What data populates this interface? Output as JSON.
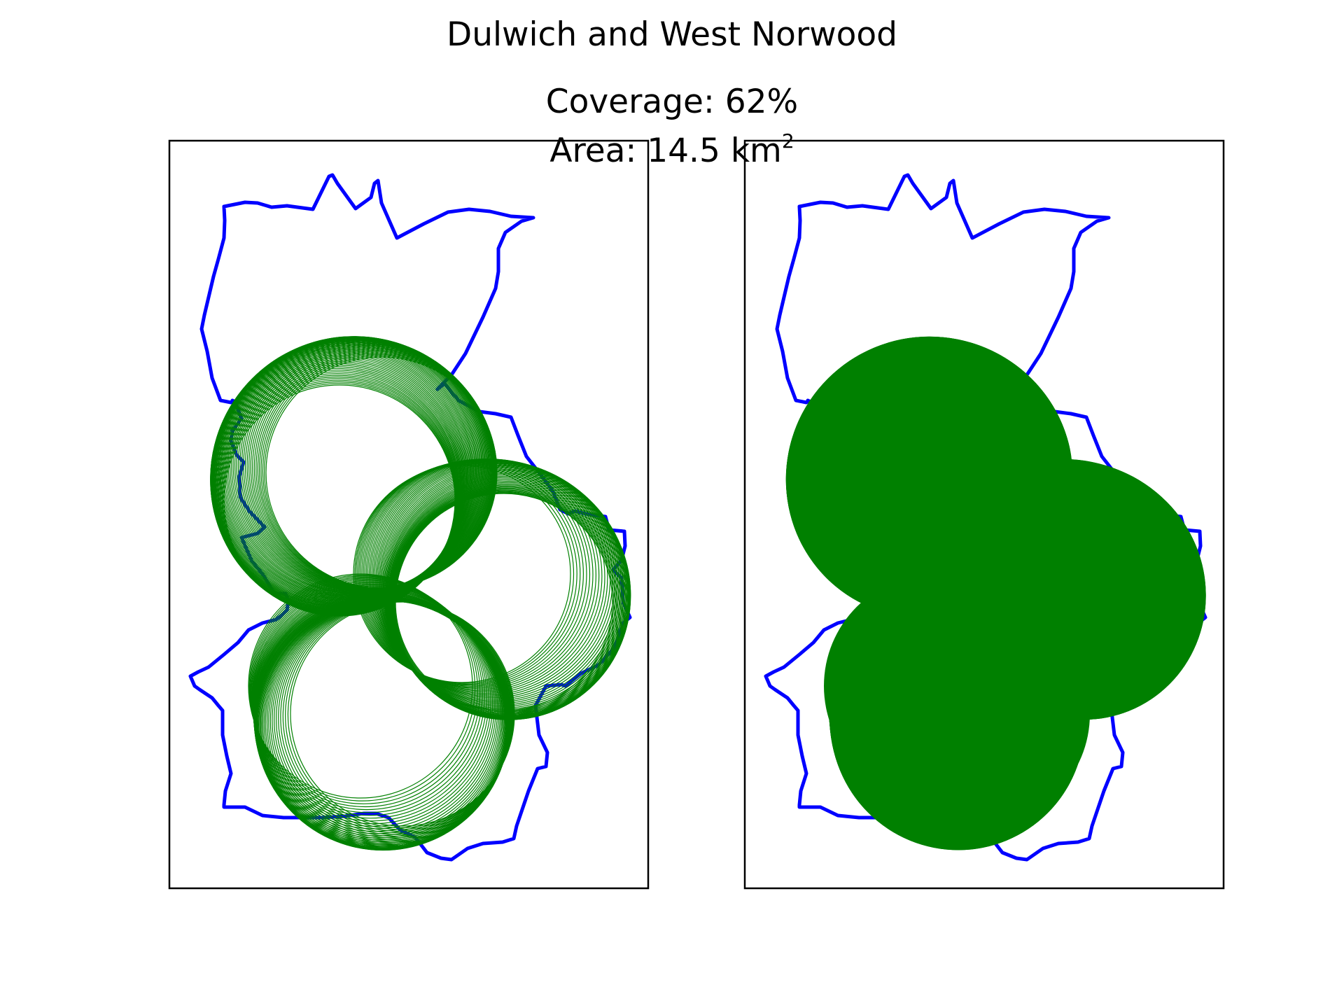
{
  "figure": {
    "title": "Dulwich and West Norwood",
    "coverage_text": "Coverage: 62%",
    "area_prefix": "Area: 14.5 km",
    "area_superscript": "2"
  },
  "colors": {
    "boundary": "#0000ff",
    "coverage": "#008000",
    "frame": "#000000",
    "background": "#ffffff"
  },
  "panels": [
    {
      "name": "left-panel",
      "style": "circle-outlines"
    },
    {
      "name": "right-panel",
      "style": "filled-union"
    }
  ],
  "coverage": {
    "circle_count": 160
  }
}
